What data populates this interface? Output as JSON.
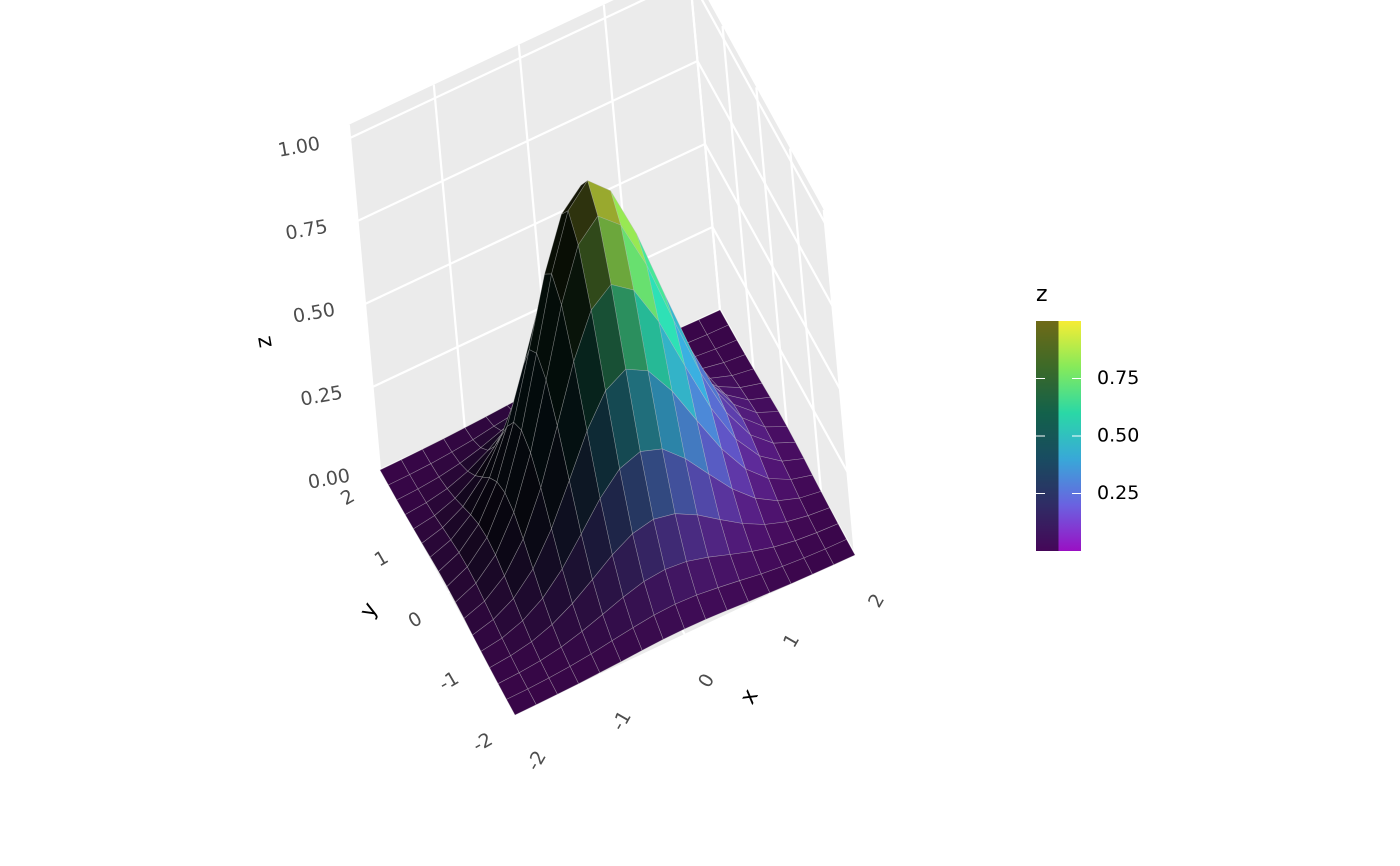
{
  "chart_data": {
    "type": "surface",
    "x": [
      -2,
      -1.75,
      -1.5,
      -1.25,
      -1,
      -0.75,
      -0.5,
      -0.25,
      0,
      0.25,
      0.5,
      0.75,
      1,
      1.25,
      1.5,
      1.75,
      2
    ],
    "y": [
      -2,
      -1.75,
      -1.5,
      -1.25,
      -1,
      -0.75,
      -0.5,
      -0.25,
      0,
      0.25,
      0.5,
      0.75,
      1,
      1.25,
      1.5,
      1.75,
      2
    ],
    "z": [
      [
        0,
        0.001,
        0.002,
        0.004,
        0.007,
        0.01,
        0.014,
        0.017,
        0.018,
        0.017,
        0.014,
        0.01,
        0.007,
        0.004,
        0.002,
        0.001,
        0
      ],
      [
        0.001,
        0.002,
        0.005,
        0.01,
        0.017,
        0.027,
        0.036,
        0.044,
        0.047,
        0.044,
        0.036,
        0.027,
        0.017,
        0.01,
        0.005,
        0.002,
        0.001
      ],
      [
        0.002,
        0.005,
        0.011,
        0.022,
        0.039,
        0.06,
        0.082,
        0.099,
        0.105,
        0.099,
        0.082,
        0.06,
        0.039,
        0.022,
        0.011,
        0.005,
        0.002
      ],
      [
        0.004,
        0.01,
        0.022,
        0.044,
        0.077,
        0.119,
        0.163,
        0.197,
        0.21,
        0.197,
        0.163,
        0.119,
        0.077,
        0.044,
        0.022,
        0.01,
        0.004
      ],
      [
        0.007,
        0.017,
        0.039,
        0.077,
        0.135,
        0.21,
        0.287,
        0.346,
        0.368,
        0.346,
        0.287,
        0.21,
        0.135,
        0.077,
        0.039,
        0.017,
        0.007
      ],
      [
        0.01,
        0.027,
        0.06,
        0.119,
        0.21,
        0.325,
        0.444,
        0.535,
        0.57,
        0.535,
        0.444,
        0.325,
        0.21,
        0.119,
        0.06,
        0.027,
        0.01
      ],
      [
        0.014,
        0.036,
        0.082,
        0.163,
        0.287,
        0.444,
        0.607,
        0.732,
        0.779,
        0.732,
        0.607,
        0.444,
        0.287,
        0.163,
        0.082,
        0.036,
        0.014
      ],
      [
        0.017,
        0.044,
        0.099,
        0.197,
        0.346,
        0.535,
        0.732,
        0.882,
        0.939,
        0.882,
        0.732,
        0.535,
        0.346,
        0.197,
        0.099,
        0.044,
        0.017
      ],
      [
        0.018,
        0.047,
        0.105,
        0.21,
        0.368,
        0.57,
        0.779,
        0.939,
        1,
        0.939,
        0.779,
        0.57,
        0.368,
        0.21,
        0.105,
        0.047,
        0.018
      ],
      [
        0.017,
        0.044,
        0.099,
        0.197,
        0.346,
        0.535,
        0.732,
        0.882,
        0.939,
        0.882,
        0.732,
        0.535,
        0.346,
        0.197,
        0.099,
        0.044,
        0.017
      ],
      [
        0.014,
        0.036,
        0.082,
        0.163,
        0.287,
        0.444,
        0.607,
        0.732,
        0.779,
        0.732,
        0.607,
        0.444,
        0.287,
        0.163,
        0.082,
        0.036,
        0.014
      ],
      [
        0.01,
        0.027,
        0.06,
        0.119,
        0.21,
        0.325,
        0.444,
        0.535,
        0.57,
        0.535,
        0.444,
        0.325,
        0.21,
        0.119,
        0.06,
        0.027,
        0.01
      ],
      [
        0.007,
        0.017,
        0.039,
        0.077,
        0.135,
        0.21,
        0.287,
        0.346,
        0.368,
        0.346,
        0.287,
        0.21,
        0.135,
        0.077,
        0.039,
        0.017,
        0.007
      ],
      [
        0.004,
        0.01,
        0.022,
        0.044,
        0.077,
        0.119,
        0.163,
        0.197,
        0.21,
        0.197,
        0.163,
        0.119,
        0.077,
        0.044,
        0.022,
        0.01,
        0.004
      ],
      [
        0.002,
        0.005,
        0.011,
        0.022,
        0.039,
        0.06,
        0.082,
        0.099,
        0.105,
        0.099,
        0.082,
        0.06,
        0.039,
        0.022,
        0.011,
        0.005,
        0.002
      ],
      [
        0.001,
        0.002,
        0.005,
        0.01,
        0.017,
        0.027,
        0.036,
        0.044,
        0.047,
        0.044,
        0.036,
        0.027,
        0.017,
        0.01,
        0.005,
        0.002,
        0.001
      ],
      [
        0,
        0.001,
        0.002,
        0.004,
        0.007,
        0.01,
        0.014,
        0.017,
        0.018,
        0.017,
        0.014,
        0.01,
        0.007,
        0.004,
        0.002,
        0.001,
        0
      ]
    ],
    "xlim": [
      -2,
      2
    ],
    "ylim": [
      -2,
      2
    ],
    "zlim": [
      0,
      1
    ],
    "xticks": [
      -2,
      -1,
      0,
      1,
      2
    ],
    "yticks": [
      -2,
      -1,
      0,
      1,
      2
    ],
    "zticks": [
      {
        "value": 0,
        "label": "0.00"
      },
      {
        "value": 0.25,
        "label": "0.25"
      },
      {
        "value": 0.5,
        "label": "0.50"
      },
      {
        "value": 0.75,
        "label": "0.75"
      },
      {
        "value": 1,
        "label": "1.00"
      }
    ],
    "xlabel": "x",
    "ylabel": "y",
    "zlabel": "z",
    "legend_title": "z",
    "colorbar_ticks": [
      {
        "value": 0.25,
        "label": "0.25"
      },
      {
        "value": 0.5,
        "label": "0.50"
      },
      {
        "value": 0.75,
        "label": "0.75"
      }
    ],
    "colors": [
      "#9a10c4",
      "#6a62e0",
      "#38a8d8",
      "#2ad8a6",
      "#86ea5a",
      "#f6ec34"
    ],
    "grid": true
  }
}
